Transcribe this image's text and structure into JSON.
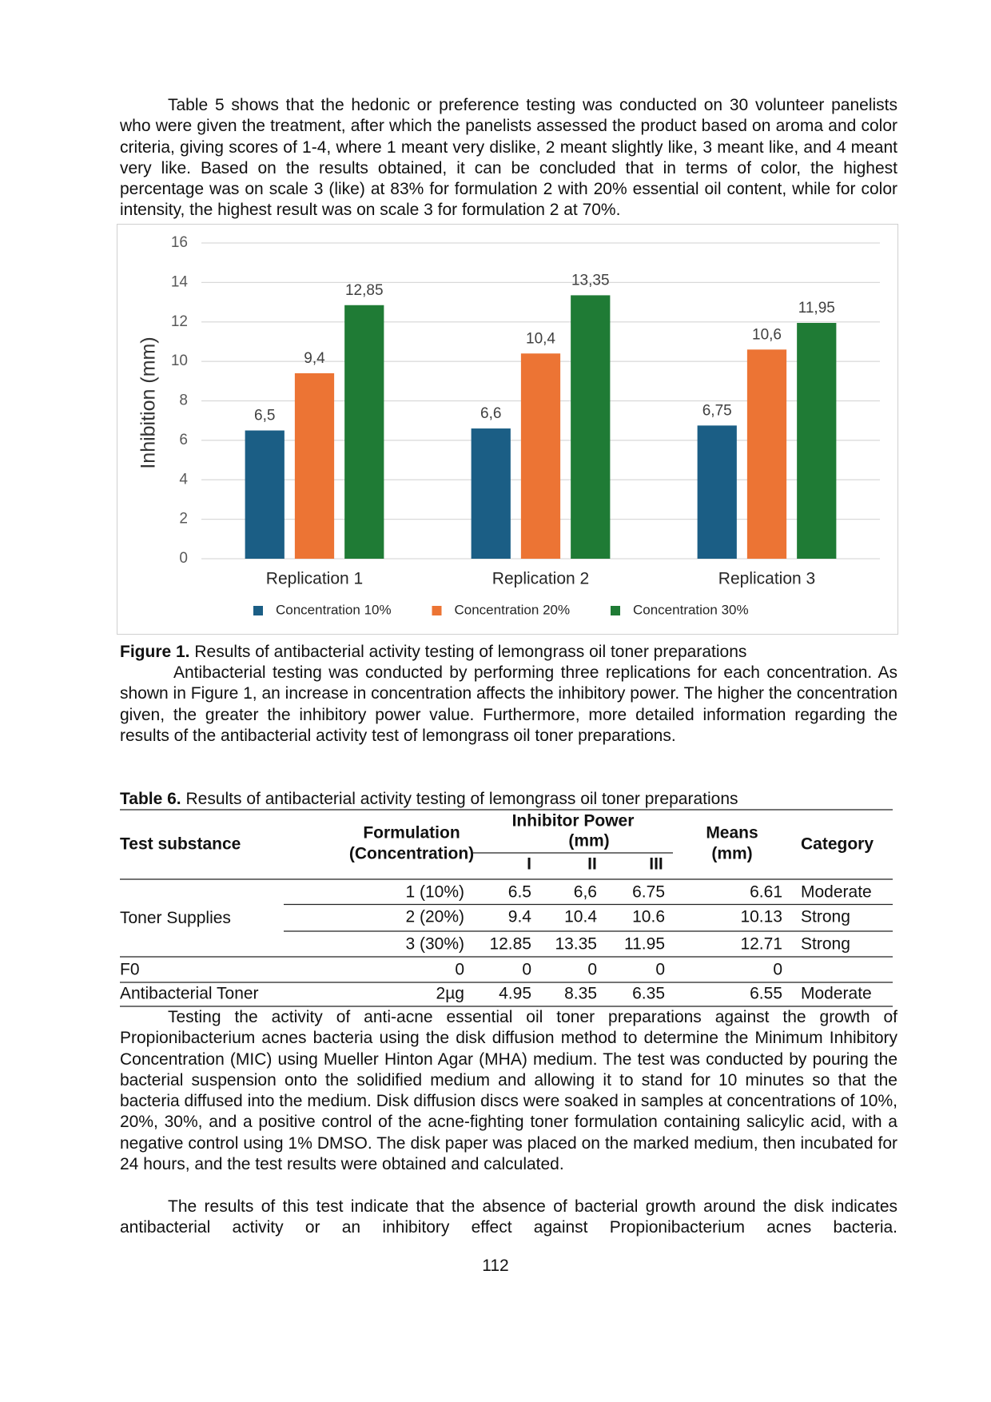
{
  "paragraph_1": "Table 5 shows that the hedonic or preference testing was conducted on 30 volunteer panelists who were given the treatment, after which the panelists assessed the product based on aroma and color criteria, giving scores of 1-4, where 1 meant very dislike, 2 meant slightly like, 3 meant like, and 4 meant very like. Based on the results obtained, it can be concluded that in terms of color, the highest percentage was on scale 3 (like) at 83% for formulation 2 with 20% essential oil content, while for color intensity, the highest result was on scale 3 for formulation 2 at 70%.",
  "chart_data": {
    "type": "bar",
    "y_label": "Inhibition (mm)",
    "categories": [
      "Replication 1",
      "Replication 2",
      "Replication 3"
    ],
    "series": [
      {
        "name": "Concentration 10%",
        "color": "#1b5e85",
        "values": [
          6.5,
          6.6,
          6.75
        ],
        "value_labels": [
          "6,5",
          "6,6",
          "6,75"
        ]
      },
      {
        "name": "Concentration 20%",
        "color": "#ec7434",
        "values": [
          9.4,
          10.4,
          10.6
        ],
        "value_labels": [
          "9,4",
          "10,4",
          "10,6"
        ]
      },
      {
        "name": "Concentration 30%",
        "color": "#1f7b35",
        "values": [
          12.85,
          13.35,
          11.95
        ],
        "value_labels": [
          "12,85",
          "13,35",
          "11,95"
        ]
      }
    ],
    "ylim": [
      0,
      16
    ],
    "yticks": [
      0,
      2,
      4,
      6,
      8,
      10,
      12,
      14,
      16
    ],
    "grid": true,
    "legend": "bottom"
  },
  "figure_caption": {
    "label": "Figure 1.",
    "text": "Results of antibacterial activity testing of lemongrass oil toner preparations"
  },
  "paragraph_2": "Antibacterial testing was conducted by performing three replications for each concentration. As shown in Figure 1, an increase in concentration affects the inhibitory power. The higher the concentration given, the greater the inhibitory power value. Furthermore, more detailed information regarding the results of the antibacterial activity test of lemongrass oil toner preparations.",
  "table": {
    "label": "Table 6.",
    "caption": "Results of antibacterial activity testing of lemongrass oil toner preparations",
    "headers": {
      "test_substance": "Test substance",
      "formulation": [
        "Formulation",
        "(Concentration)"
      ],
      "inhibitor_power": [
        "Inhibitor Power",
        "(mm)"
      ],
      "replications": [
        "I",
        "II",
        "III"
      ],
      "means": [
        "Means",
        "(mm)"
      ],
      "category": "Category"
    },
    "groups": [
      {
        "substance": "Toner Supplies",
        "rows": [
          {
            "formulation": "1 (10%)",
            "values": [
              "6.5",
              "6,6",
              "6.75"
            ],
            "mean": "6.61",
            "category": "Moderate"
          },
          {
            "formulation": "2 (20%)",
            "values": [
              "9.4",
              "10.4",
              "10.6"
            ],
            "mean": "10.13",
            "category": "Strong"
          },
          {
            "formulation": "3 (30%)",
            "values": [
              "12.85",
              "13.35",
              "11.95"
            ],
            "mean": "12.71",
            "category": "Strong"
          }
        ]
      },
      {
        "substance": "F0",
        "rows": [
          {
            "formulation": "0",
            "values": [
              "0",
              "0",
              "0"
            ],
            "mean": "0"
          }
        ]
      },
      {
        "substance": "Antibacterial Toner",
        "rows": [
          {
            "formulation": "2µg",
            "values": [
              "4.95",
              "8.35",
              "6.35"
            ],
            "mean": "6.55",
            "category": "Moderate"
          }
        ]
      }
    ]
  },
  "paragraph_3": "Testing the activity of anti-acne essential oil toner preparations against the growth of Propionibacterium acnes bacteria using the disk diffusion method to determine the Minimum Inhibitory Concentration (MIC) using Mueller Hinton Agar (MHA) medium. The test was conducted by pouring the bacterial suspension onto the solidified medium and allowing it to stand for 10 minutes so that the bacteria diffused into the medium. Disk diffusion discs were soaked in samples at concentrations of 10%, 20%, 30%, and a positive control of the acne-fighting toner formulation containing salicylic acid, with a negative control using 1% DMSO. The disk paper was placed on the marked medium, then incubated for 24 hours, and the test results were obtained and calculated.",
  "paragraph_4": "The results of this test indicate that the absence of bacterial growth around the disk indicates antibacterial activity or an inhibitory effect against Propionibacterium acnes bacteria.",
  "page_number": "112"
}
